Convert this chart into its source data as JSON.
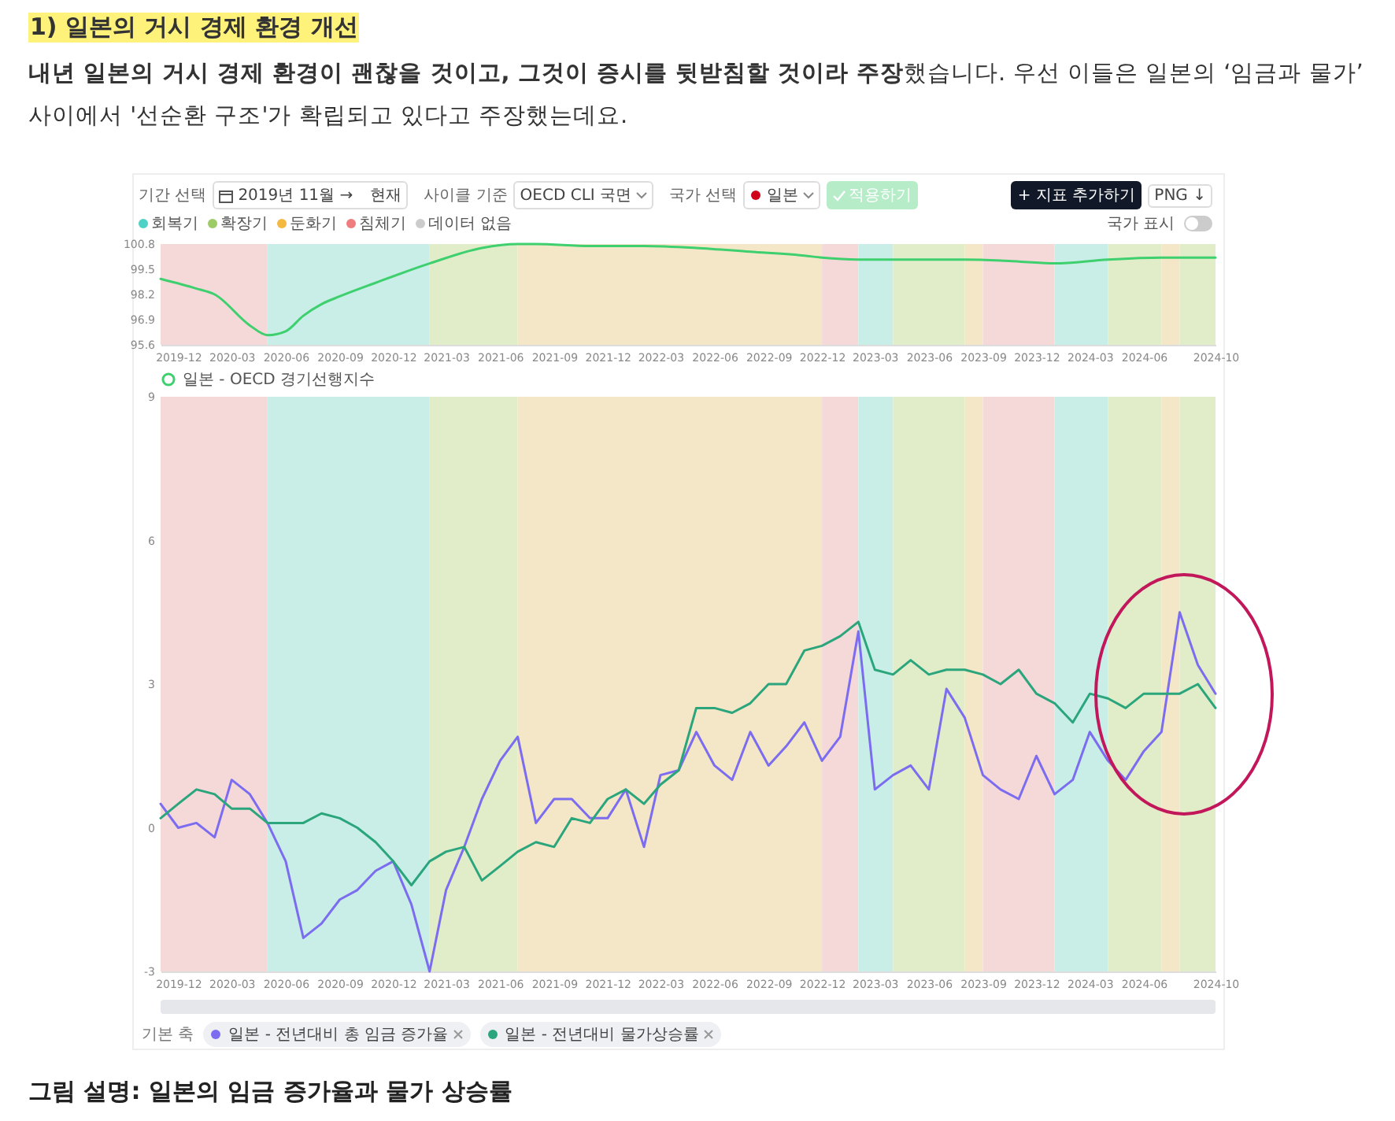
{
  "chart_data": [
    {
      "type": "line",
      "series": [
        {
          "name": "일본 - OECD 경기선행지수",
          "color": "#3ecf6e",
          "x": [
            "2019-11",
            "2020-01",
            "2020-02",
            "2020-04",
            "2020-05",
            "2020-06",
            "2020-07",
            "2020-08",
            "2020-09",
            "2020-11",
            "2021-02",
            "2021-05",
            "2021-07",
            "2021-08",
            "2021-11",
            "2022-02",
            "2022-05",
            "2022-08",
            "2022-11",
            "2022-12",
            "2023-02",
            "2023-05",
            "2023-08",
            "2023-11",
            "2024-01",
            "2024-04",
            "2024-07",
            "2024-10"
          ],
          "values": [
            99.0,
            98.5,
            98.2,
            96.6,
            96.1,
            96.3,
            97.1,
            97.7,
            98.1,
            98.8,
            99.8,
            100.6,
            100.8,
            100.8,
            100.7,
            100.7,
            100.6,
            100.4,
            100.2,
            100.1,
            100.0,
            100.0,
            100.0,
            99.9,
            99.8,
            100.0,
            100.1,
            100.1
          ]
        }
      ],
      "xlim": [
        "2019-11",
        "2024-10"
      ],
      "xticks": [
        "2019-12",
        "2020-03",
        "2020-06",
        "2020-09",
        "2020-12",
        "2021-03",
        "2021-06",
        "2021-09",
        "2021-12",
        "2022-03",
        "2022-06",
        "2022-09",
        "2022-12",
        "2023-03",
        "2023-06",
        "2023-09",
        "2023-12",
        "2024-03",
        "2024-06",
        "2024-10"
      ],
      "ylim": [
        95.6,
        100.8
      ],
      "yticks": [
        95.6,
        96.9,
        98.2,
        99.5,
        100.8
      ],
      "bands": [
        {
          "axis": "x",
          "from": "2019-11",
          "to": "2020-05",
          "color": "#f5d9d9"
        },
        {
          "axis": "x",
          "from": "2020-05",
          "to": "2021-02",
          "color": "#c8eee7"
        },
        {
          "axis": "x",
          "from": "2021-02",
          "to": "2021-07",
          "color": "#e1edc9"
        },
        {
          "axis": "x",
          "from": "2021-07",
          "to": "2022-12",
          "color": "#f4e7c7"
        },
        {
          "axis": "x",
          "from": "2022-12",
          "to": "2023-02",
          "color": "#f5d9d9"
        },
        {
          "axis": "x",
          "from": "2023-02",
          "to": "2023-04",
          "color": "#c8eee7"
        },
        {
          "axis": "x",
          "from": "2023-04",
          "to": "2023-08",
          "color": "#e1edc9"
        },
        {
          "axis": "x",
          "from": "2023-08",
          "to": "2023-09",
          "color": "#f4e7c7"
        },
        {
          "axis": "x",
          "from": "2023-09",
          "to": "2024-01",
          "color": "#f5d9d9"
        },
        {
          "axis": "x",
          "from": "2024-01",
          "to": "2024-04",
          "color": "#c8eee7"
        },
        {
          "axis": "x",
          "from": "2024-04",
          "to": "2024-07",
          "color": "#e1edc9"
        },
        {
          "axis": "x",
          "from": "2024-07",
          "to": "2024-08",
          "color": "#f4e7c7"
        },
        {
          "axis": "x",
          "from": "2024-08",
          "to": "2024-10",
          "color": "#e1edc9"
        }
      ],
      "legend": "bottom",
      "annotations": [
        "1) 일본의 거시 경제 환경 개선",
        "내년 일본의 거시 경제 환경이 괜찮을 것이고, 그것이 증시를 뒷받침할 것이라 주장",
        "했습니다. 우선 이들은 일본의 ‘임금과 물가’ 사이에서 '선순환 구조'가 확립되고 있다고 주장했는데요.",
        "기간 선택",
        "2019년 11월 →",
        "현재",
        "사이클 기준",
        "OECD CLI 국면",
        "국가 선택",
        "일본",
        "적용하기",
        "+ 지표 추가하기",
        "PNG ↓",
        "회복기",
        "확장기",
        "둔화기",
        "침체기",
        "데이터 없음",
        "국가 표시"
      ]
    },
    {
      "type": "line",
      "x": [
        "2019-11",
        "2019-12",
        "2020-01",
        "2020-02",
        "2020-03",
        "2020-04",
        "2020-05",
        "2020-06",
        "2020-07",
        "2020-08",
        "2020-09",
        "2020-10",
        "2020-11",
        "2020-12",
        "2021-01",
        "2021-02",
        "2021-03",
        "2021-04",
        "2021-05",
        "2021-06",
        "2021-07",
        "2021-08",
        "2021-09",
        "2021-10",
        "2021-11",
        "2021-12",
        "2022-01",
        "2022-02",
        "2022-03",
        "2022-04",
        "2022-05",
        "2022-06",
        "2022-07",
        "2022-08",
        "2022-09",
        "2022-10",
        "2022-11",
        "2022-12",
        "2023-01",
        "2023-02",
        "2023-03",
        "2023-04",
        "2023-05",
        "2023-06",
        "2023-07",
        "2023-08",
        "2023-09",
        "2023-10",
        "2023-11",
        "2023-12",
        "2024-01",
        "2024-02",
        "2024-03",
        "2024-04",
        "2024-05",
        "2024-06",
        "2024-07",
        "2024-08",
        "2024-09",
        "2024-10"
      ],
      "series": [
        {
          "name": "일본 - 전년대비 총 임금 증가율",
          "color": "#7b6cf0",
          "values": [
            0.5,
            0.0,
            0.1,
            -0.2,
            1.0,
            0.7,
            0.1,
            -0.7,
            -2.3,
            -2.0,
            -1.5,
            -1.3,
            -0.9,
            -0.7,
            -1.6,
            -3.0,
            -1.3,
            -0.4,
            0.6,
            1.4,
            1.9,
            0.1,
            0.6,
            0.6,
            0.2,
            0.2,
            0.8,
            -0.4,
            1.1,
            1.2,
            2.0,
            1.3,
            1.0,
            2.0,
            1.3,
            1.7,
            2.2,
            1.4,
            1.9,
            4.1,
            0.8,
            1.1,
            1.3,
            0.8,
            2.9,
            2.3,
            1.1,
            0.8,
            0.6,
            1.5,
            0.7,
            1.0,
            2.0,
            1.4,
            1.0,
            1.6,
            2.0,
            4.5,
            3.4,
            2.8
          ]
        },
        {
          "name": "일본 - 전년대비 물가상승률",
          "color": "#2ba57c",
          "values": [
            0.2,
            0.5,
            0.8,
            0.7,
            0.4,
            0.4,
            0.1,
            0.1,
            0.1,
            0.3,
            0.2,
            0.0,
            -0.3,
            -0.7,
            -1.2,
            -0.7,
            -0.5,
            -0.4,
            -1.1,
            -0.8,
            -0.5,
            -0.3,
            -0.4,
            0.2,
            0.1,
            0.6,
            0.8,
            0.5,
            0.9,
            1.2,
            2.5,
            2.5,
            2.4,
            2.6,
            3.0,
            3.0,
            3.7,
            3.8,
            4.0,
            4.3,
            3.3,
            3.2,
            3.5,
            3.2,
            3.3,
            3.3,
            3.2,
            3.0,
            3.3,
            2.8,
            2.6,
            2.2,
            2.8,
            2.7,
            2.5,
            2.8,
            2.8,
            2.8,
            3.0,
            2.5
          ]
        }
      ],
      "xlim": [
        "2019-11",
        "2024-10"
      ],
      "xticks": [
        "2019-12",
        "2020-03",
        "2020-06",
        "2020-09",
        "2020-12",
        "2021-03",
        "2021-06",
        "2021-09",
        "2021-12",
        "2022-03",
        "2022-06",
        "2022-09",
        "2022-12",
        "2023-03",
        "2023-06",
        "2023-09",
        "2023-12",
        "2024-03",
        "2024-06",
        "2024-10"
      ],
      "ylim": [
        -3,
        9
      ],
      "yticks": [
        -3,
        0,
        3,
        6,
        9
      ],
      "bands": [
        {
          "axis": "x",
          "from": "2019-11",
          "to": "2020-05",
          "color": "#f5d9d9"
        },
        {
          "axis": "x",
          "from": "2020-05",
          "to": "2021-02",
          "color": "#c8eee7"
        },
        {
          "axis": "x",
          "from": "2021-02",
          "to": "2021-07",
          "color": "#e1edc9"
        },
        {
          "axis": "x",
          "from": "2021-07",
          "to": "2022-12",
          "color": "#f4e7c7"
        },
        {
          "axis": "x",
          "from": "2022-12",
          "to": "2023-02",
          "color": "#f5d9d9"
        },
        {
          "axis": "x",
          "from": "2023-02",
          "to": "2023-04",
          "color": "#c8eee7"
        },
        {
          "axis": "x",
          "from": "2023-04",
          "to": "2023-08",
          "color": "#e1edc9"
        },
        {
          "axis": "x",
          "from": "2023-08",
          "to": "2023-09",
          "color": "#f4e7c7"
        },
        {
          "axis": "x",
          "from": "2023-09",
          "to": "2024-01",
          "color": "#f5d9d9"
        },
        {
          "axis": "x",
          "from": "2024-01",
          "to": "2024-04",
          "color": "#c8eee7"
        },
        {
          "axis": "x",
          "from": "2024-04",
          "to": "2024-07",
          "color": "#e1edc9"
        },
        {
          "axis": "x",
          "from": "2024-07",
          "to": "2024-08",
          "color": "#f4e7c7"
        },
        {
          "axis": "x",
          "from": "2024-08",
          "to": "2024-10",
          "color": "#e1edc9"
        }
      ],
      "legend": "bottom",
      "legend_title": "기본 축",
      "annotations": [
        "그림 설명: 일본의 임금 증가율과 물가 상승률"
      ]
    }
  ]
}
